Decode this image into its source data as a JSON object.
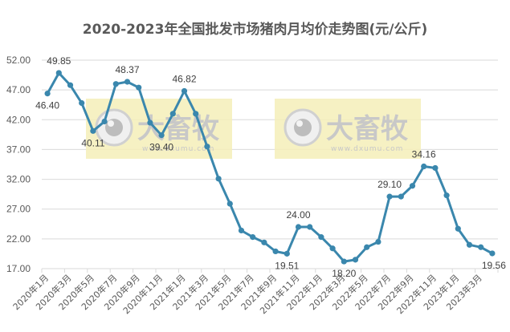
{
  "chart_data": {
    "type": "line",
    "title": "2020-2023年全国批发市场猪肉月均价走势图(元/公斤)",
    "xlabel": "",
    "ylabel": "",
    "ylim": [
      17,
      52
    ],
    "yticks": [
      "52.00",
      "47.00",
      "42.00",
      "37.00",
      "32.00",
      "27.00",
      "22.00",
      "17.00"
    ],
    "grid": true,
    "legend": "none",
    "x": [
      "2020年1月",
      "2020年2月",
      "2020年3月",
      "2020年4月",
      "2020年5月",
      "2020年6月",
      "2020年7月",
      "2020年8月",
      "2020年9月",
      "2020年10月",
      "2020年11月",
      "2020年12月",
      "2021年1月",
      "2021年2月",
      "2021年3月",
      "2021年4月",
      "2021年5月",
      "2021年6月",
      "2021年7月",
      "2021年8月",
      "2021年9月",
      "2021年10月",
      "2021年11月",
      "2021年12月",
      "2022年1月",
      "2022年2月",
      "2022年3月",
      "2022年4月",
      "2022年5月",
      "2022年6月",
      "2022年7月",
      "2022年8月",
      "2022年9月",
      "2022年10月",
      "2022年11月",
      "2022年12月",
      "2023年1月",
      "2023年2月",
      "2023年3月",
      "2023年4月"
    ],
    "xtick_labels": [
      "2020年1月",
      "2020年3月",
      "2020年5月",
      "2020年7月",
      "2020年9月",
      "2020年11月",
      "2021年1月",
      "2021年3月",
      "2021年5月",
      "2021年7月",
      "2021年9月",
      "2021年11月",
      "2022年1月",
      "2022年3月",
      "2022年5月",
      "2022年7月",
      "2022年9月",
      "2022年11月",
      "2023年1月",
      "2023年3月"
    ],
    "series": [
      {
        "name": "猪肉月均价",
        "color": "#3A87AD",
        "values": [
          46.4,
          49.85,
          47.8,
          44.8,
          40.11,
          41.7,
          48.0,
          48.37,
          47.4,
          41.5,
          39.4,
          43.0,
          46.82,
          43.0,
          37.5,
          32.1,
          27.9,
          23.4,
          22.3,
          21.4,
          19.9,
          19.51,
          24.0,
          24.0,
          22.3,
          20.4,
          18.2,
          18.5,
          20.6,
          21.5,
          29.1,
          29.1,
          30.9,
          34.16,
          33.9,
          29.3,
          23.7,
          21.0,
          20.6,
          19.56
        ]
      }
    ],
    "annotations": [
      {
        "index": 0,
        "text": "46.40",
        "pos": "below"
      },
      {
        "index": 1,
        "text": "49.85",
        "pos": "above"
      },
      {
        "index": 4,
        "text": "40.11",
        "pos": "below"
      },
      {
        "index": 7,
        "text": "48.37",
        "pos": "above"
      },
      {
        "index": 10,
        "text": "39.40",
        "pos": "below"
      },
      {
        "index": 12,
        "text": "46.82",
        "pos": "above"
      },
      {
        "index": 21,
        "text": "19.51",
        "pos": "below"
      },
      {
        "index": 22,
        "text": "24.00",
        "pos": "above"
      },
      {
        "index": 26,
        "text": "18.20",
        "pos": "below"
      },
      {
        "index": 30,
        "text": "29.10",
        "pos": "above"
      },
      {
        "index": 33,
        "text": "34.16",
        "pos": "above"
      },
      {
        "index": 39,
        "text": "19.56",
        "pos": "below"
      }
    ]
  },
  "watermark": {
    "brand": "大畜牧",
    "url": "www.dxumu.com"
  },
  "colors": {
    "line": "#3A87AD",
    "grid": "#D9D9D9",
    "watermark_bg": "#F5EEB8"
  }
}
